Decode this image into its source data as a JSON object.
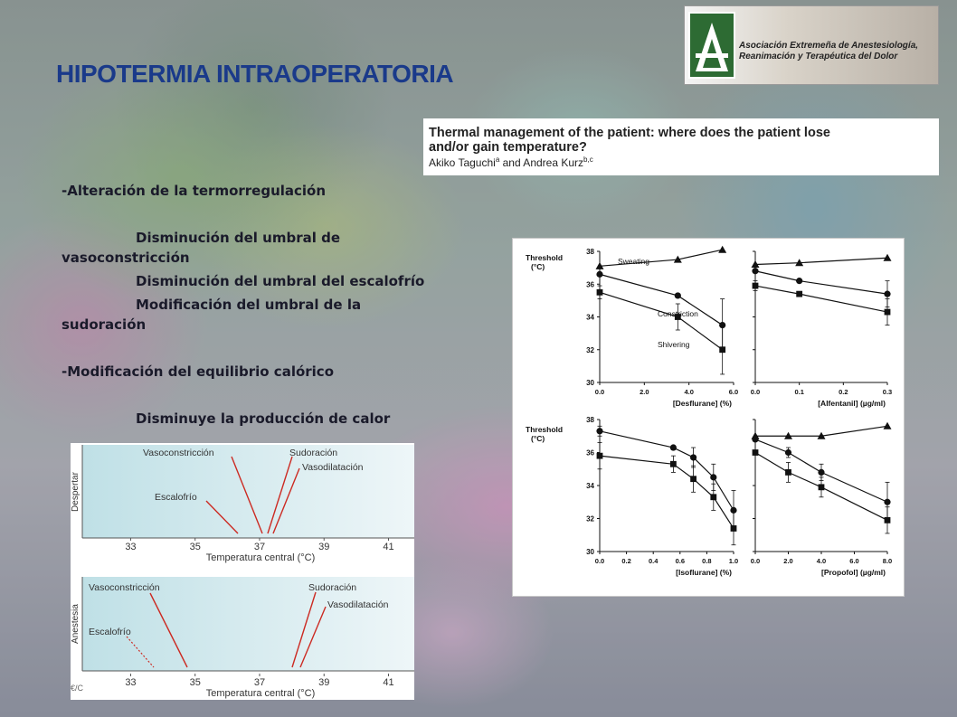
{
  "slide": {
    "title": "HIPOTERMIA INTRAOPERATORIA"
  },
  "logo": {
    "line1": "Asociación Extremeña de Anestesiología,",
    "line2": "Reanimación y Terapéutica del Dolor"
  },
  "reference": {
    "title_line1": "Thermal management of the patient: where does the patient lose",
    "title_line2": "and/or gain temperature?",
    "authors": "Akiko Taguchi",
    "author_sup1": "a",
    "authors_and": " and Andrea Kurz",
    "author_sup2": "b,c"
  },
  "bullets": {
    "b1": "-Alteración de la termorregulación",
    "b1a_line1": "Disminución  del umbral de",
    "b1a_line2": "vasoconstricción",
    "b1b": "Disminución  del umbral del escalofrío",
    "b1c_line1": "Modificación  del umbral de la",
    "b1c_line2": "sudoración",
    "b2": "-Modificación  del equilibrio calórico",
    "b2a": "Disminuye  la producción  de calor"
  },
  "threshold_diagram": {
    "panels": [
      {
        "label": "Despertar",
        "labels": [
          "Vasoconstricción",
          "Escalofrío",
          "Sudoración",
          "Vasodilatación"
        ],
        "thresholds": {
          "vasoconstriccion": 36.8,
          "escalofrio": 36.2,
          "sudoracion": 37.1,
          "vasodilatacion": 37.3
        }
      },
      {
        "label": "Anestesia",
        "labels": [
          "Vasoconstricción",
          "Escalofrío",
          "Sudoración",
          "Vasodilatación"
        ],
        "thresholds": {
          "vasoconstriccion": 34.5,
          "escalofrio": 33.6,
          "sudoracion": 38.0,
          "vasodilatacion": 38.2
        }
      }
    ],
    "xticks": [
      "33",
      "35",
      "37",
      "39",
      "41"
    ],
    "xlim": [
      31.5,
      41.8
    ],
    "xlabel": "Temperatura central (°C)",
    "watermark": "€/C",
    "colors": {
      "line": "#cc2a22",
      "panel_fill": "#cfe6ea"
    }
  },
  "chart_data": [
    {
      "type": "line",
      "panel": "desflurane",
      "ylabel_line1": "Threshold",
      "ylabel_line2": "(°C)",
      "xlabel": "[Desflurane] (%)",
      "xticks": [
        "0.0",
        "2.0",
        "4.0",
        "6.0"
      ],
      "yticks": [
        "30",
        "32",
        "34",
        "36",
        "38"
      ],
      "xlim": [
        0,
        6
      ],
      "ylim": [
        30,
        38
      ],
      "annotations": [
        "Sweating",
        "Constriction",
        "Shivering"
      ],
      "series": [
        {
          "name": "Sweating",
          "marker": "triangle",
          "x": [
            0,
            3.5,
            5.5
          ],
          "y": [
            37.1,
            37.5,
            38.1
          ]
        },
        {
          "name": "Constriction",
          "marker": "circle",
          "x": [
            0,
            3.5,
            5.5
          ],
          "y": [
            36.6,
            35.3,
            33.5
          ],
          "err": [
            0,
            0,
            1.6
          ]
        },
        {
          "name": "Shivering",
          "marker": "square",
          "x": [
            0,
            3.5,
            5.5
          ],
          "y": [
            35.5,
            34.0,
            32.0
          ],
          "err": [
            0.4,
            0.8,
            1.5
          ]
        }
      ]
    },
    {
      "type": "line",
      "panel": "alfentanil",
      "xlabel": "[Alfentanil] (µg/ml)",
      "xticks": [
        "0.0",
        "0.1",
        "0.2",
        "0.3"
      ],
      "xlim": [
        0,
        0.3
      ],
      "ylim": [
        30,
        38
      ],
      "series": [
        {
          "marker": "triangle",
          "x": [
            0,
            0.1,
            0.3
          ],
          "y": [
            37.2,
            37.3,
            37.6
          ]
        },
        {
          "marker": "circle",
          "x": [
            0,
            0.1,
            0.3
          ],
          "y": [
            36.8,
            36.2,
            35.4
          ],
          "err": [
            0,
            0,
            0.8
          ]
        },
        {
          "marker": "square",
          "x": [
            0,
            0.1,
            0.3
          ],
          "y": [
            35.9,
            35.4,
            34.3
          ],
          "err": [
            0.3,
            0,
            0.8
          ]
        }
      ]
    },
    {
      "type": "line",
      "panel": "isoflurane",
      "ylabel_line1": "Threshold",
      "ylabel_line2": "(°C)",
      "xlabel": "[Isoflurane] (%)",
      "xticks": [
        "0.0",
        "0.2",
        "0.4",
        "0.6",
        "0.8",
        "1.0"
      ],
      "yticks": [
        "30",
        "32",
        "34",
        "36",
        "38"
      ],
      "xlim": [
        0,
        1.0
      ],
      "ylim": [
        30,
        38
      ],
      "series": [
        {
          "marker": "circle",
          "x": [
            0,
            0.55,
            0.7,
            0.85,
            1.0
          ],
          "y": [
            37.3,
            36.3,
            35.7,
            34.5,
            32.5
          ],
          "err": [
            0.3,
            0,
            0.6,
            0.8,
            1.2
          ]
        },
        {
          "marker": "square",
          "x": [
            0,
            0.55,
            0.7,
            0.85,
            1.0
          ],
          "y": [
            35.8,
            35.3,
            34.4,
            33.3,
            31.4
          ],
          "err": [
            0.8,
            0.5,
            0.8,
            0.8,
            1.0
          ]
        }
      ]
    },
    {
      "type": "line",
      "panel": "propofol",
      "xlabel": "[Propofol] (µg/ml)",
      "xticks": [
        "0.0",
        "2.0",
        "4.0",
        "6.0",
        "8.0"
      ],
      "xlim": [
        0,
        8.0
      ],
      "ylim": [
        30,
        38
      ],
      "series": [
        {
          "marker": "triangle",
          "x": [
            0,
            2,
            4,
            8
          ],
          "y": [
            37.0,
            37.0,
            37.0,
            37.6
          ]
        },
        {
          "marker": "circle",
          "x": [
            0,
            2,
            4,
            8
          ],
          "y": [
            36.8,
            36.0,
            34.8,
            33.0
          ],
          "err": [
            0,
            0.3,
            0.5,
            1.2
          ]
        },
        {
          "marker": "square",
          "x": [
            0,
            2,
            4,
            8
          ],
          "y": [
            36.0,
            34.8,
            33.9,
            31.9
          ],
          "err": [
            0,
            0.6,
            0.6,
            0.8
          ]
        }
      ]
    }
  ]
}
